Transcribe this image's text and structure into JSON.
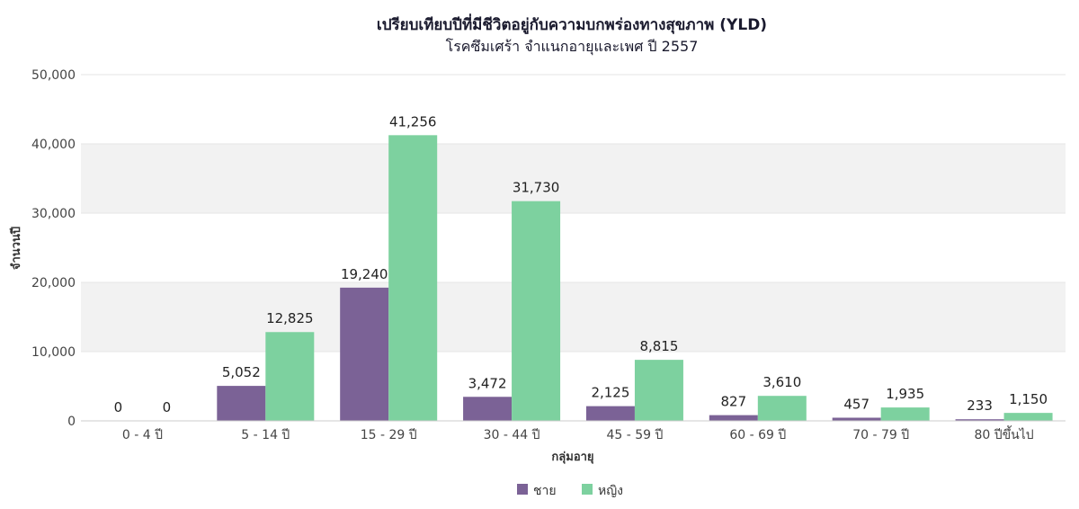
{
  "chart_data": {
    "type": "bar",
    "title": "เปรียบเทียบปีที่มีชีวิตอยู่กับความบกพร่องทางสุขภาพ (YLD)",
    "subtitle": "โรคซึมเศร้า จำแนกอายุและเพศ ปี 2557",
    "xlabel": "กลุ่มอายุ",
    "ylabel": "จำนวนปี",
    "ylim": [
      0,
      50000
    ],
    "yticks": [
      0,
      10000,
      20000,
      30000,
      40000,
      50000
    ],
    "ytick_labels": [
      "0",
      "10,000",
      "20,000",
      "30,000",
      "40,000",
      "50,000"
    ],
    "categories": [
      "0 - 4 ปี",
      "5 - 14 ปี",
      "15 - 29 ปี",
      "30 - 44 ปี",
      "45 - 59 ปี",
      "60 - 69 ปี",
      "70 - 79 ปี",
      "80 ปีขึ้นไป"
    ],
    "series": [
      {
        "name": "ชาย",
        "color": "#7b6296",
        "values": [
          0,
          5052,
          19240,
          3472,
          2125,
          827,
          457,
          233
        ],
        "labels": [
          "0",
          "5,052",
          "19,240",
          "3,472",
          "2,125",
          "827",
          "457",
          "233"
        ]
      },
      {
        "name": "หญิง",
        "color": "#7dd19f",
        "values": [
          0,
          12825,
          41256,
          31730,
          8815,
          3610,
          1935,
          1150
        ],
        "labels": [
          "0",
          "12,825",
          "41,256",
          "31,730",
          "8,815",
          "3,610",
          "1,935",
          "1,150"
        ]
      }
    ],
    "grid": "alternating-bands",
    "band_color": "#f2f2f2",
    "legend_position": "bottom-center"
  }
}
